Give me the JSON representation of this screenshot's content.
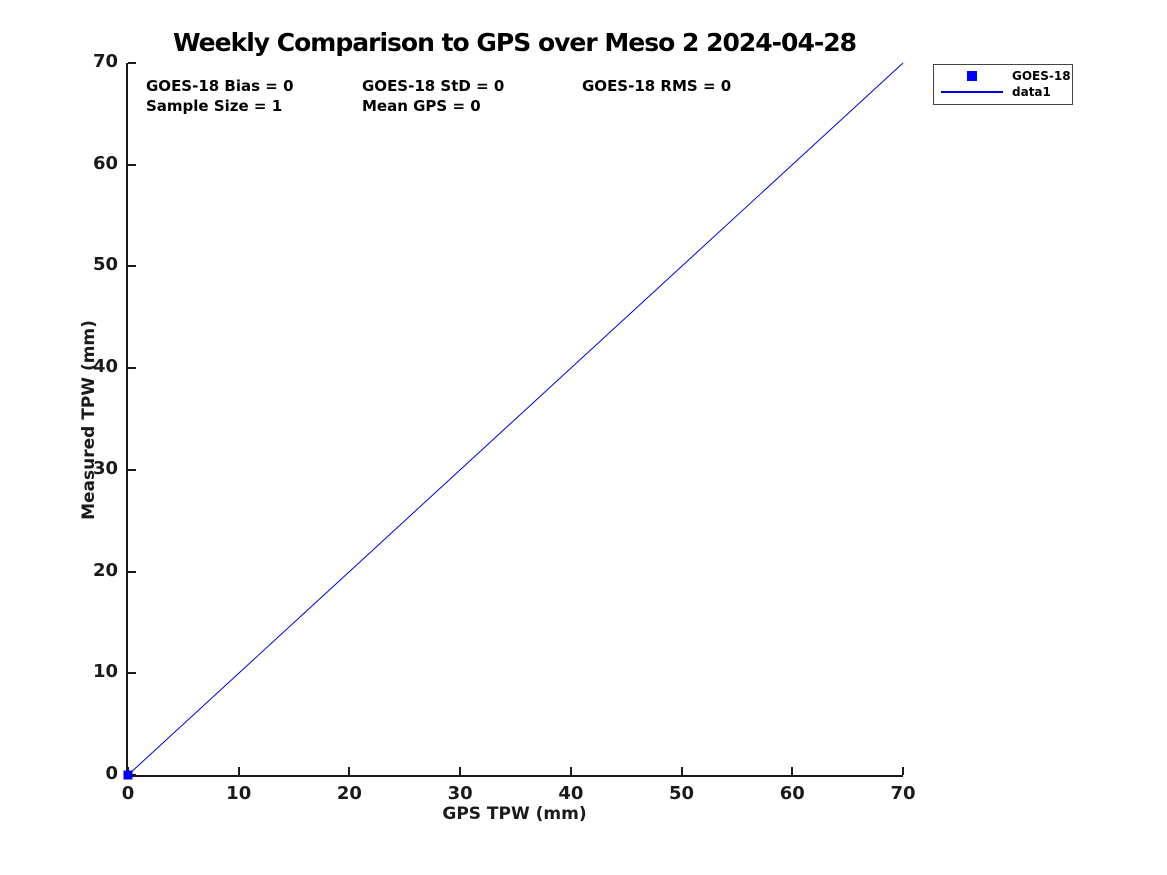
{
  "title": "Weekly Comparison to GPS over Meso 2 2024-04-28",
  "stats": {
    "bias": "GOES-18 Bias = 0",
    "std": "GOES-18 StD = 0",
    "rms": "GOES-18 RMS = 0",
    "sample_size": "Sample Size = 1",
    "mean_gps": "Mean GPS = 0"
  },
  "axes": {
    "xlabel": "GPS TPW (mm)",
    "ylabel": "Measured TPW (mm)",
    "xticks": [
      0,
      10,
      20,
      30,
      40,
      50,
      60,
      70
    ],
    "yticks": [
      0,
      10,
      20,
      30,
      40,
      50,
      60,
      70
    ],
    "xlim": [
      0,
      70
    ],
    "ylim": [
      0,
      70
    ]
  },
  "legend": {
    "entries": [
      {
        "symbol": "square-marker",
        "color": "#0000FF",
        "label": "GOES-18"
      },
      {
        "symbol": "line",
        "color": "#0000DD",
        "label": "data1"
      }
    ]
  },
  "colors": {
    "line": "#0000DD",
    "marker": "#0000FF",
    "axis": "#1a1a1a",
    "text": "#000000"
  },
  "chart_data": {
    "type": "line",
    "title": "Weekly Comparison to GPS over Meso 2 2024-04-28",
    "xlabel": "GPS TPW (mm)",
    "ylabel": "Measured TPW (mm)",
    "xlim": [
      0,
      70
    ],
    "ylim": [
      0,
      70
    ],
    "grid": false,
    "legend_position": "outside-top-right",
    "series": [
      {
        "name": "GOES-18",
        "type": "scatter",
        "marker": "square",
        "marker_size": 9,
        "color": "#0000FF",
        "x": [
          0
        ],
        "y": [
          0
        ]
      },
      {
        "name": "data1",
        "type": "line",
        "color": "#0000DD",
        "line_width": 1,
        "x": [
          0,
          70
        ],
        "y": [
          0,
          70
        ]
      }
    ],
    "annotations": [
      "GOES-18 Bias = 0",
      "GOES-18 StD = 0",
      "GOES-18 RMS = 0",
      "Sample Size = 1",
      "Mean GPS = 0"
    ]
  }
}
